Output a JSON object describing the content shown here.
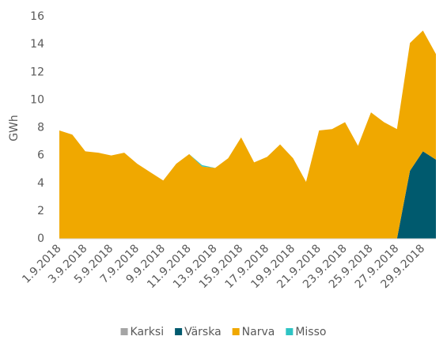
{
  "chart_data": {
    "type": "stacked_area",
    "y_label": "GWh",
    "categories": [
      "1.9.2018",
      null,
      "3.9.2018",
      null,
      "5.9.2018",
      null,
      "7.9.2018",
      null,
      "9.9.2018",
      null,
      "11.9.2018",
      null,
      "13.9.2018",
      null,
      "15.9.2018",
      null,
      "17.9.2018",
      null,
      "19.9.2018",
      null,
      "21.9.2018",
      null,
      "23.9.2018",
      null,
      "25.9.2018",
      null,
      "27.9.2018",
      null,
      "29.9.2018",
      null
    ],
    "series": [
      {
        "name": "Karksi",
        "color": "#a5a5a5",
        "values": [
          0,
          0,
          0,
          0,
          0,
          0,
          0,
          0,
          0,
          0,
          0,
          0,
          0,
          0,
          0,
          0,
          0,
          0,
          0,
          0,
          0,
          0,
          0,
          0,
          0,
          0,
          0,
          0,
          0,
          0
        ]
      },
      {
        "name": "Värska",
        "color": "#005a6e",
        "values": [
          0,
          0,
          0,
          0,
          0,
          0,
          0,
          0,
          0,
          0,
          0,
          0,
          0,
          0,
          0,
          0,
          0,
          0,
          0,
          0,
          0,
          0,
          0,
          0,
          0,
          0,
          0,
          4.9,
          6.3,
          5.7
        ]
      },
      {
        "name": "Narva",
        "color": "#f0a800",
        "values": [
          7.8,
          7.5,
          6.3,
          6.2,
          6.0,
          6.2,
          5.4,
          4.8,
          4.2,
          5.4,
          6.1,
          5.2,
          5.1,
          5.8,
          7.3,
          5.5,
          5.9,
          6.8,
          5.8,
          4.1,
          7.8,
          7.9,
          8.4,
          6.7,
          9.1,
          8.4,
          7.9,
          9.2,
          8.7,
          7.6
        ]
      },
      {
        "name": "Misso",
        "color": "#2ec4c4",
        "values": [
          0,
          0,
          0,
          0,
          0,
          0,
          0,
          0,
          0,
          0,
          0,
          0.1,
          0,
          0,
          0,
          0,
          0,
          0,
          0,
          0,
          0,
          0,
          0,
          0,
          0,
          0,
          0,
          0,
          0,
          0
        ]
      }
    ],
    "ylim": [
      0,
      16
    ],
    "yticks": [
      0,
      2,
      4,
      6,
      8,
      10,
      12,
      14,
      16
    ],
    "grid": false
  }
}
